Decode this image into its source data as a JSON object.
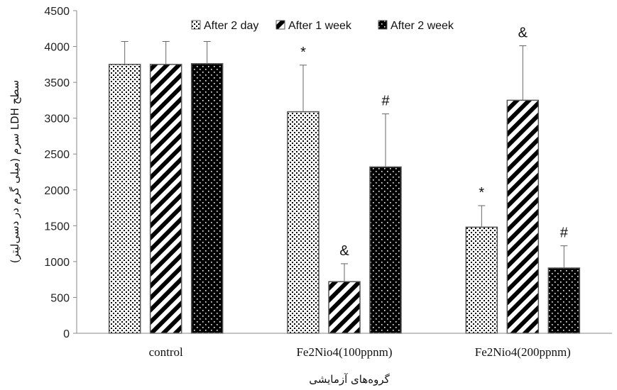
{
  "chart_data": {
    "type": "bar",
    "categories": [
      "control",
      "Fe2Nio4(100ppnm)",
      "Fe2Nio4(200ppnm)"
    ],
    "series": [
      {
        "name": "After 2 day",
        "values": [
          3750,
          3090,
          1480
        ],
        "errors": [
          320,
          650,
          300
        ],
        "annotations": [
          "",
          "*",
          "*"
        ],
        "pattern": "dots-dense"
      },
      {
        "name": "After 1 week",
        "values": [
          3750,
          720,
          3250
        ],
        "errors": [
          320,
          250,
          760
        ],
        "annotations": [
          "",
          "&",
          "&"
        ],
        "pattern": "diagonal"
      },
      {
        "name": "After 2 week",
        "values": [
          3760,
          2320,
          910
        ],
        "errors": [
          310,
          740,
          310
        ],
        "annotations": [
          "",
          "#",
          "#"
        ],
        "pattern": "dots-white-on-black"
      }
    ],
    "ylim": [
      0,
      4500
    ],
    "yticks": [
      0,
      500,
      1000,
      1500,
      2000,
      2500,
      3000,
      3500,
      4000,
      4500
    ],
    "xlabel": "گروه‌های آزمایشی",
    "ylabel": "سطح LDH سرم (میلی گرم در دسی‌لیتر)",
    "legend_position": "top",
    "grid": false
  }
}
